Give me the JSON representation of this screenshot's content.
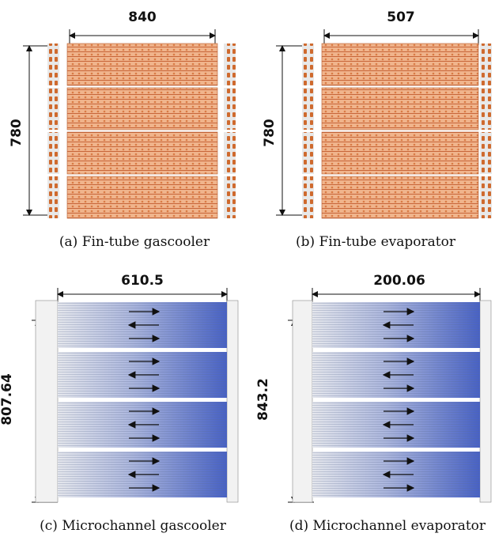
{
  "panels": [
    {
      "width_label": "840",
      "height_label": "780",
      "caption": "(a) Fin-tube gascooler"
    },
    {
      "width_label": "507",
      "height_label": "780",
      "caption": "(b) Fin-tube evaporator"
    },
    {
      "width_label": "610.5",
      "height_label": "807.64",
      "caption": "(c) Microchannel gascooler"
    },
    {
      "width_label": "200.06",
      "height_label": "843.2",
      "caption": "(d) Microchannel evaporator"
    }
  ]
}
